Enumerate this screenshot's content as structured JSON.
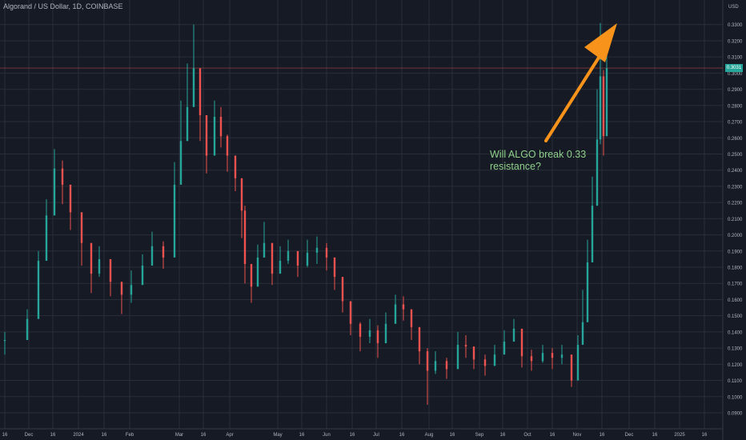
{
  "header": {
    "title": "Algorand / US Dollar, 1D, COINBASE",
    "currency": "USD"
  },
  "price_tag": "0.3031",
  "annotation": {
    "line1": "Will ALGO break 0.33",
    "line2": "resistance?",
    "color": "#8fd18a"
  },
  "colors": {
    "background": "#161a25",
    "grid": "#2a2e39",
    "up": "#26a69a",
    "down": "#ef5350",
    "arrow": "#f7931a",
    "axis_text": "#b2b5be",
    "price_line": "#ef5350"
  },
  "chart_data": {
    "type": "candlestick",
    "title": "Algorand / US Dollar, 1D, COINBASE",
    "ylabel": "USD",
    "ylim": [
      0.085,
      0.335
    ],
    "y_ticks": [
      "0.0900",
      "0.1000",
      "0.1100",
      "0.1200",
      "0.1300",
      "0.1400",
      "0.1500",
      "0.1600",
      "0.1700",
      "0.1800",
      "0.1900",
      "0.2000",
      "0.2100",
      "0.2200",
      "0.2300",
      "0.2400",
      "0.2500",
      "0.2600",
      "0.2700",
      "0.2800",
      "0.2900",
      "0.3000",
      "0.3100",
      "0.3200",
      "0.3300"
    ],
    "x_ticks": [
      "16",
      "Dec",
      "16",
      "2024",
      "16",
      "Feb",
      "Mar",
      "16",
      "Apr",
      "May",
      "16",
      "Jun",
      "16",
      "Jul",
      "16",
      "Aug",
      "16",
      "Sep",
      "16",
      "Oct",
      "16",
      "Nov",
      "16",
      "Dec",
      "16",
      "2025",
      "16"
    ],
    "last_price": 0.3031,
    "grid": true,
    "series": [
      {
        "points": [
          {
            "date": "2023-11-15",
            "close": 0.135,
            "high": 0.14,
            "low": 0.126
          },
          {
            "date": "2023-11-29",
            "close": 0.148,
            "high": 0.154,
            "low": 0.139
          },
          {
            "date": "2023-12-06",
            "close": 0.184,
            "high": 0.19,
            "low": 0.17
          },
          {
            "date": "2023-12-11",
            "close": 0.212,
            "high": 0.222,
            "low": 0.198
          },
          {
            "date": "2023-12-16",
            "close": 0.241,
            "high": 0.253,
            "low": 0.226
          },
          {
            "date": "2023-12-21",
            "close": 0.231,
            "high": 0.246,
            "low": 0.219
          },
          {
            "date": "2023-12-26",
            "close": 0.214,
            "high": 0.226,
            "low": 0.203
          },
          {
            "date": "2024-01-02",
            "close": 0.195,
            "high": 0.208,
            "low": 0.181
          },
          {
            "date": "2024-01-08",
            "close": 0.176,
            "high": 0.189,
            "low": 0.164
          },
          {
            "date": "2024-01-13",
            "close": 0.185,
            "high": 0.193,
            "low": 0.174
          },
          {
            "date": "2024-01-20",
            "close": 0.171,
            "high": 0.179,
            "low": 0.162
          },
          {
            "date": "2024-01-27",
            "close": 0.163,
            "high": 0.17,
            "low": 0.151
          },
          {
            "date": "2024-02-02",
            "close": 0.169,
            "high": 0.178,
            "low": 0.158
          },
          {
            "date": "2024-02-09",
            "close": 0.181,
            "high": 0.188,
            "low": 0.173
          },
          {
            "date": "2024-02-15",
            "close": 0.193,
            "high": 0.202,
            "low": 0.184
          },
          {
            "date": "2024-02-22",
            "close": 0.186,
            "high": 0.196,
            "low": 0.179
          },
          {
            "date": "2024-02-29",
            "close": 0.231,
            "high": 0.245,
            "low": 0.212
          },
          {
            "date": "2024-03-04",
            "close": 0.258,
            "high": 0.283,
            "low": 0.243
          },
          {
            "date": "2024-03-08",
            "close": 0.279,
            "high": 0.306,
            "low": 0.262
          },
          {
            "date": "2024-03-12",
            "close": 0.303,
            "high": 0.33,
            "low": 0.282
          },
          {
            "date": "2024-03-16",
            "close": 0.274,
            "high": 0.293,
            "low": 0.258
          },
          {
            "date": "2024-03-20",
            "close": 0.249,
            "high": 0.262,
            "low": 0.238
          },
          {
            "date": "2024-03-25",
            "close": 0.273,
            "high": 0.283,
            "low": 0.258
          },
          {
            "date": "2024-03-29",
            "close": 0.261,
            "high": 0.279,
            "low": 0.254
          },
          {
            "date": "2024-04-02",
            "close": 0.249,
            "high": 0.262,
            "low": 0.239
          },
          {
            "date": "2024-04-07",
            "close": 0.235,
            "high": 0.244,
            "low": 0.227
          },
          {
            "date": "2024-04-11",
            "close": 0.215,
            "high": 0.233,
            "low": 0.198
          },
          {
            "date": "2024-04-13",
            "close": 0.182,
            "high": 0.218,
            "low": 0.17
          },
          {
            "date": "2024-04-17",
            "close": 0.168,
            "high": 0.181,
            "low": 0.158
          },
          {
            "date": "2024-04-21",
            "close": 0.186,
            "high": 0.194,
            "low": 0.176
          },
          {
            "date": "2024-04-25",
            "close": 0.195,
            "high": 0.208,
            "low": 0.186
          },
          {
            "date": "2024-04-30",
            "close": 0.176,
            "high": 0.191,
            "low": 0.169
          },
          {
            "date": "2024-05-05",
            "close": 0.184,
            "high": 0.193,
            "low": 0.177
          },
          {
            "date": "2024-05-10",
            "close": 0.19,
            "high": 0.197,
            "low": 0.182
          },
          {
            "date": "2024-05-16",
            "close": 0.181,
            "high": 0.189,
            "low": 0.174
          },
          {
            "date": "2024-05-22",
            "close": 0.189,
            "high": 0.197,
            "low": 0.18
          },
          {
            "date": "2024-05-28",
            "close": 0.192,
            "high": 0.199,
            "low": 0.182
          },
          {
            "date": "2024-06-03",
            "close": 0.186,
            "high": 0.195,
            "low": 0.178
          },
          {
            "date": "2024-06-08",
            "close": 0.174,
            "high": 0.186,
            "low": 0.166
          },
          {
            "date": "2024-06-13",
            "close": 0.159,
            "high": 0.172,
            "low": 0.152
          },
          {
            "date": "2024-06-18",
            "close": 0.145,
            "high": 0.158,
            "low": 0.138
          },
          {
            "date": "2024-06-24",
            "close": 0.137,
            "high": 0.146,
            "low": 0.128
          },
          {
            "date": "2024-06-30",
            "close": 0.141,
            "high": 0.148,
            "low": 0.133
          },
          {
            "date": "2024-07-05",
            "close": 0.133,
            "high": 0.144,
            "low": 0.124
          },
          {
            "date": "2024-07-10",
            "close": 0.145,
            "high": 0.152,
            "low": 0.138
          },
          {
            "date": "2024-07-16",
            "close": 0.157,
            "high": 0.163,
            "low": 0.148
          },
          {
            "date": "2024-07-21",
            "close": 0.154,
            "high": 0.162,
            "low": 0.147
          },
          {
            "date": "2024-07-26",
            "close": 0.143,
            "high": 0.151,
            "low": 0.135
          },
          {
            "date": "2024-07-31",
            "close": 0.128,
            "high": 0.141,
            "low": 0.12
          },
          {
            "date": "2024-08-05",
            "close": 0.116,
            "high": 0.13,
            "low": 0.095
          },
          {
            "date": "2024-08-10",
            "close": 0.122,
            "high": 0.128,
            "low": 0.114
          },
          {
            "date": "2024-08-17",
            "close": 0.117,
            "high": 0.124,
            "low": 0.111
          },
          {
            "date": "2024-08-24",
            "close": 0.132,
            "high": 0.14,
            "low": 0.125
          },
          {
            "date": "2024-08-29",
            "close": 0.131,
            "high": 0.138,
            "low": 0.124
          },
          {
            "date": "2024-09-03",
            "close": 0.123,
            "high": 0.13,
            "low": 0.117
          },
          {
            "date": "2024-09-10",
            "close": 0.119,
            "high": 0.126,
            "low": 0.113
          },
          {
            "date": "2024-09-16",
            "close": 0.126,
            "high": 0.132,
            "low": 0.119
          },
          {
            "date": "2024-09-22",
            "close": 0.134,
            "high": 0.141,
            "low": 0.128
          },
          {
            "date": "2024-09-28",
            "close": 0.142,
            "high": 0.148,
            "low": 0.136
          },
          {
            "date": "2024-10-03",
            "close": 0.125,
            "high": 0.136,
            "low": 0.118
          },
          {
            "date": "2024-10-09",
            "close": 0.122,
            "high": 0.129,
            "low": 0.116
          },
          {
            "date": "2024-10-16",
            "close": 0.127,
            "high": 0.132,
            "low": 0.121
          },
          {
            "date": "2024-10-22",
            "close": 0.124,
            "high": 0.13,
            "low": 0.117
          },
          {
            "date": "2024-10-28",
            "close": 0.126,
            "high": 0.132,
            "low": 0.12
          },
          {
            "date": "2024-11-03",
            "close": 0.11,
            "high": 0.122,
            "low": 0.106
          },
          {
            "date": "2024-11-07",
            "close": 0.132,
            "high": 0.138,
            "low": 0.112
          },
          {
            "date": "2024-11-10",
            "close": 0.146,
            "high": 0.166,
            "low": 0.136
          },
          {
            "date": "2024-11-13",
            "close": 0.183,
            "high": 0.197,
            "low": 0.17
          },
          {
            "date": "2024-11-16",
            "close": 0.218,
            "high": 0.236,
            "low": 0.198
          },
          {
            "date": "2024-11-19",
            "close": 0.259,
            "high": 0.29,
            "low": 0.246
          },
          {
            "date": "2024-11-21",
            "close": 0.298,
            "high": 0.331,
            "low": 0.256
          },
          {
            "date": "2024-11-23",
            "close": 0.261,
            "high": 0.302,
            "low": 0.249
          },
          {
            "date": "2024-11-25",
            "close": 0.303,
            "high": 0.315,
            "low": 0.276
          }
        ]
      }
    ]
  }
}
